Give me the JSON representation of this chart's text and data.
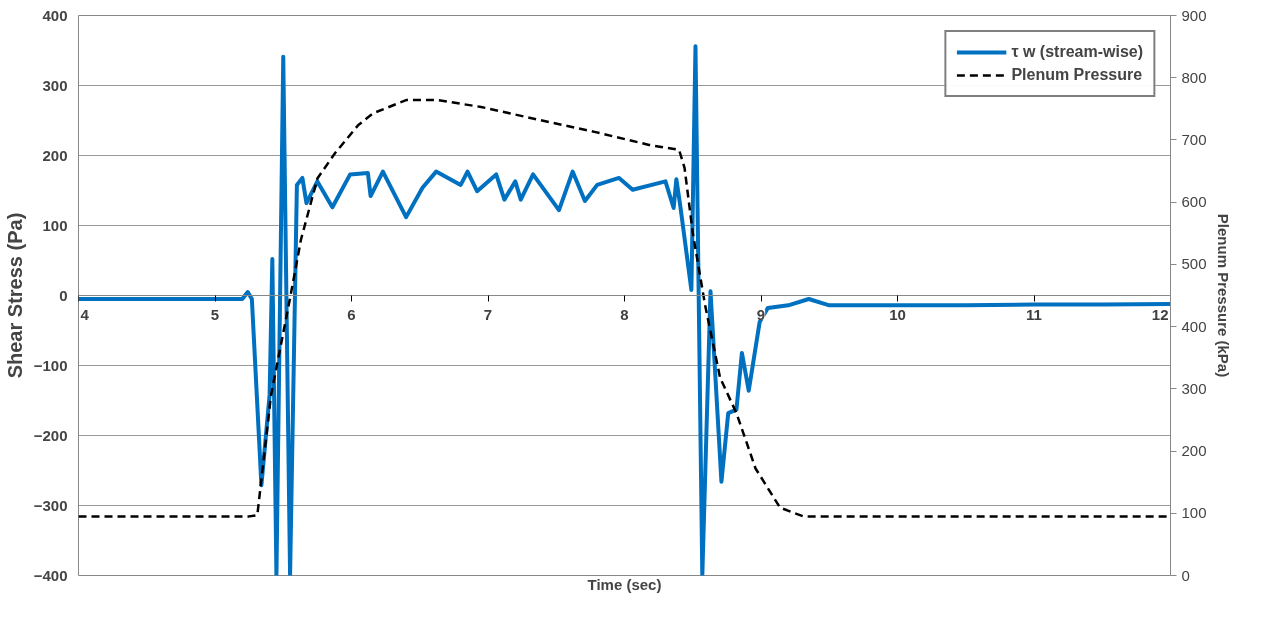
{
  "chart_data": {
    "type": "line",
    "xlabel": "Time (sec)",
    "ylabel": "Shear Stress (Pa)",
    "y2label": "Plenum Pressure (kPa)",
    "xlim": [
      4,
      12
    ],
    "xticks": [
      4,
      5,
      6,
      7,
      8,
      9,
      10,
      11,
      12
    ],
    "ylim": [
      -400,
      400
    ],
    "yticks": [
      -400,
      -300,
      -200,
      -100,
      0,
      100,
      200,
      300,
      400
    ],
    "y2lim": [
      0,
      900
    ],
    "y2ticks": [
      0,
      100,
      200,
      300,
      400,
      500,
      600,
      700,
      800,
      900
    ],
    "grid": "y",
    "legend": "top right",
    "marker": "none",
    "series": [
      {
        "name": "τ w (stream-wise)",
        "color": "#0070c0",
        "line_style": "solid",
        "x": [
          4,
          5.2,
          5.24,
          5.27,
          5.34,
          5.4,
          5.42,
          5.45,
          5.5,
          5.55,
          5.6,
          5.64,
          5.67,
          5.75,
          5.86,
          5.99,
          6.12,
          6.14,
          6.23,
          6.4,
          6.52,
          6.62,
          6.8,
          6.85,
          6.92,
          7.06,
          7.12,
          7.2,
          7.24,
          7.33,
          7.52,
          7.62,
          7.71,
          7.8,
          7.96,
          8.06,
          8.3,
          8.36,
          8.38,
          8.41,
          8.49,
          8.52,
          8.57,
          8.63,
          8.71,
          8.76,
          8.82,
          8.86,
          8.91,
          8.99,
          9.05,
          9.2,
          9.35,
          9.5,
          10,
          10.5,
          11,
          11.5,
          12
        ],
        "values": [
          -5,
          -5,
          5,
          -5,
          -271,
          -142,
          52,
          -400,
          341,
          -400,
          158,
          168,
          132,
          163,
          126,
          173,
          175,
          142,
          177,
          112,
          154,
          177,
          158,
          177,
          149,
          173,
          137,
          163,
          137,
          173,
          122,
          177,
          135,
          158,
          168,
          151,
          163,
          125,
          166,
          126,
          8,
          356,
          -400,
          6,
          -266,
          -168,
          -163,
          -82,
          -136,
          -38,
          -18,
          -14,
          -5,
          -14,
          -14,
          -14,
          -13,
          -13,
          -12
        ]
      },
      {
        "name": "Plenum Pressure",
        "color": "#000000",
        "line_style": "dashed",
        "axis": "y2",
        "x": [
          4,
          5.25,
          5.31,
          5.41,
          5.55,
          5.63,
          5.75,
          5.88,
          6.05,
          6.16,
          6.4,
          6.63,
          6.95,
          7.38,
          7.78,
          8.18,
          8.4,
          8.44,
          8.5,
          8.59,
          8.7,
          8.82,
          8.96,
          9.14,
          9.31,
          10,
          11,
          12
        ],
        "values": [
          95,
          95,
          97,
          289,
          446,
          540,
          638,
          679,
          724,
          743,
          764,
          764,
          753,
          732,
          713,
          692,
          684,
          655,
          551,
          435,
          318,
          261,
          172,
          109,
          95,
          95,
          95,
          95
        ]
      }
    ]
  }
}
